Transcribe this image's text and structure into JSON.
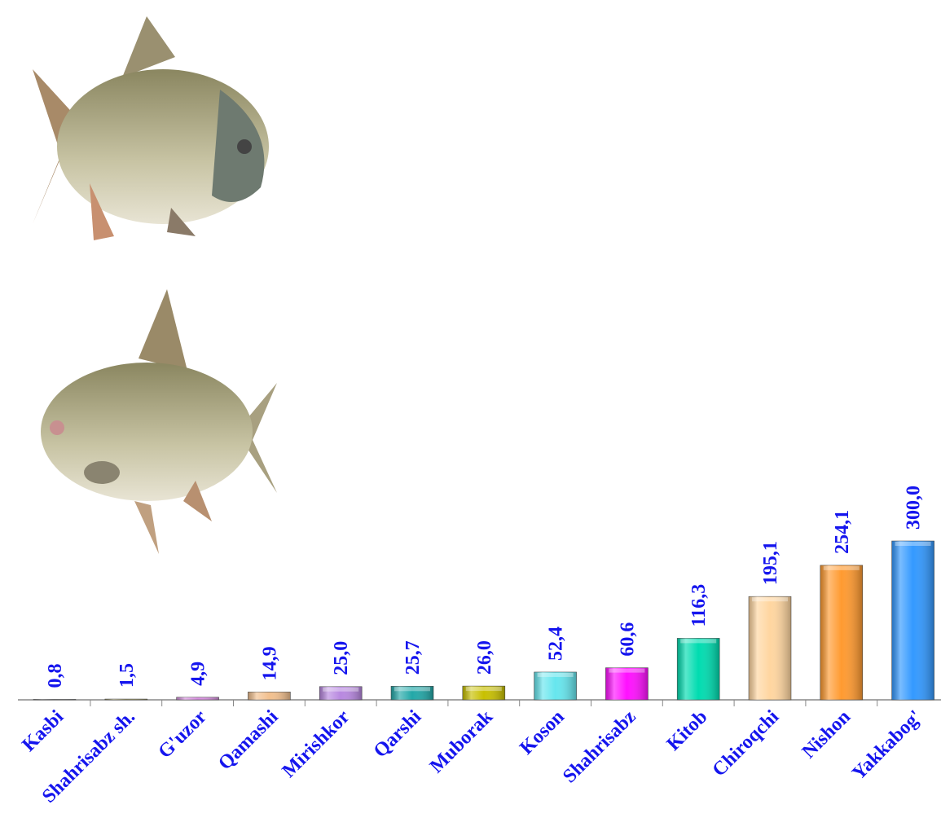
{
  "chart_data": {
    "type": "bar",
    "categories": [
      "Kasbi",
      "Shahrisabz sh.",
      "G'uzor",
      "Qamashi",
      "Mirishkor",
      "Qarshi",
      "Muborak",
      "Koson",
      "Shahrisabz",
      "Kitob",
      "Chiroqchi",
      "Nishon",
      "Yakkabog'"
    ],
    "values": [
      0.8,
      1.5,
      4.9,
      14.9,
      25.0,
      25.7,
      26.0,
      52.4,
      60.6,
      116.3,
      195.1,
      254.1,
      300.0
    ],
    "value_labels": [
      "0,8",
      "1,5",
      "4,9",
      "14,9",
      "25,0",
      "25,7",
      "26,0",
      "52,4",
      "60,6",
      "116,3",
      "195,1",
      "254,1",
      "300,0"
    ],
    "colors": [
      "#5aa0d8",
      "#b8b060",
      "#d890e0",
      "#f2c08e",
      "#b888e0",
      "#22a8a8",
      "#c8c000",
      "#66e6ee",
      "#ff10ff",
      "#00dcb0",
      "#ffd6a0",
      "#ff9a30",
      "#3399ff"
    ]
  }
}
